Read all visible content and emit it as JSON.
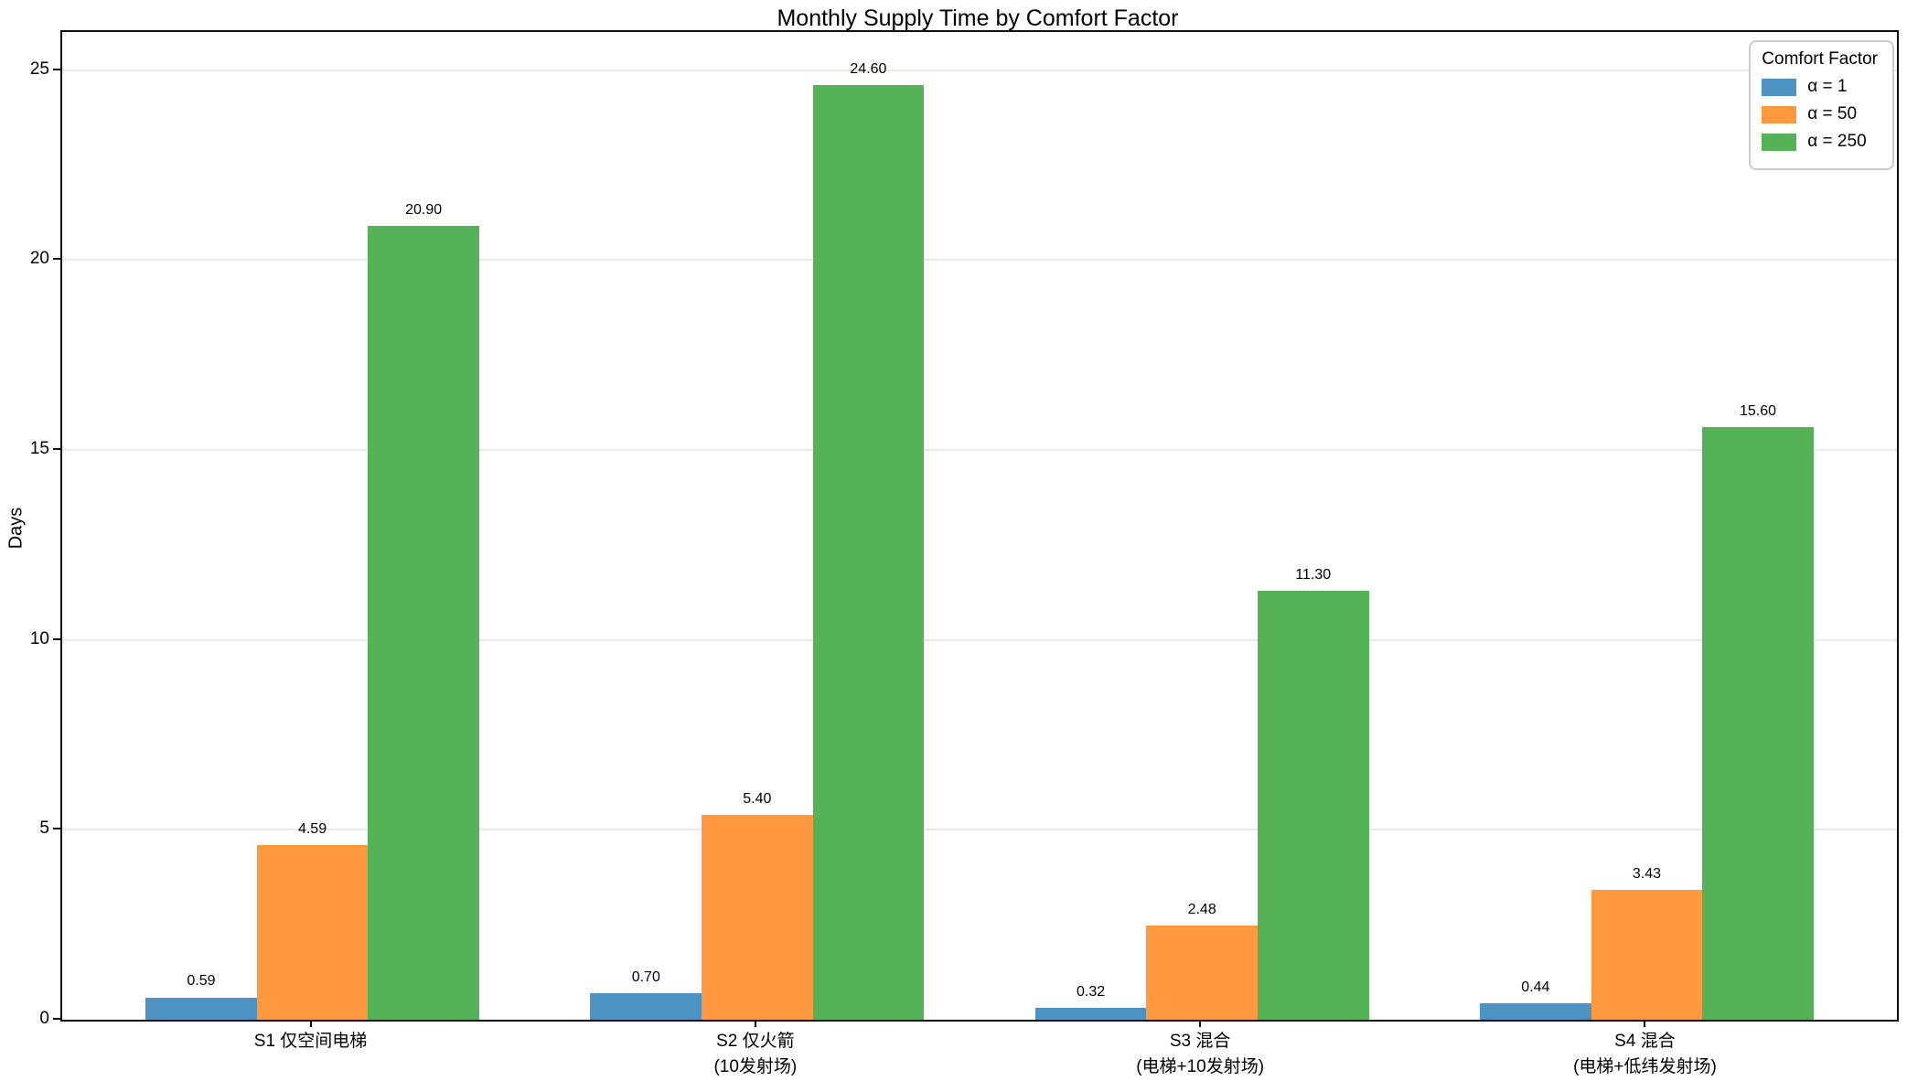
{
  "title": "Monthly Supply Time by Comfort Factor",
  "chart_data": {
    "type": "bar",
    "title": "Monthly Supply Time by Comfort Factor",
    "xlabel": "",
    "ylabel": "Days",
    "ylim": [
      0,
      26
    ],
    "yticks": [
      0,
      5,
      10,
      15,
      20,
      25
    ],
    "grid": "horizontal-major",
    "legend_title": "Comfort Factor",
    "legend_position": "upper right",
    "categories": [
      {
        "lines": [
          "S1 仅空间电梯"
        ]
      },
      {
        "lines": [
          "S2 仅火箭",
          "(10发射场)"
        ]
      },
      {
        "lines": [
          "S3 混合",
          "(电梯+10发射场)"
        ]
      },
      {
        "lines": [
          "S4 混合",
          "(电梯+低纬发射场)"
        ]
      }
    ],
    "series": [
      {
        "name": "α = 1",
        "color": "#4C92C3",
        "values": [
          0.59,
          0.7,
          0.32,
          0.44
        ],
        "labels": [
          "0.59",
          "0.70",
          "0.32",
          "0.44"
        ]
      },
      {
        "name": "α = 50",
        "color": "#FF9940",
        "values": [
          4.59,
          5.4,
          2.48,
          3.43
        ],
        "labels": [
          "4.59",
          "5.40",
          "2.48",
          "3.43"
        ]
      },
      {
        "name": "α = 250",
        "color": "#56B256",
        "values": [
          20.9,
          24.6,
          11.3,
          15.6
        ],
        "labels": [
          "20.90",
          "24.60",
          "11.30",
          "15.60"
        ]
      }
    ]
  }
}
